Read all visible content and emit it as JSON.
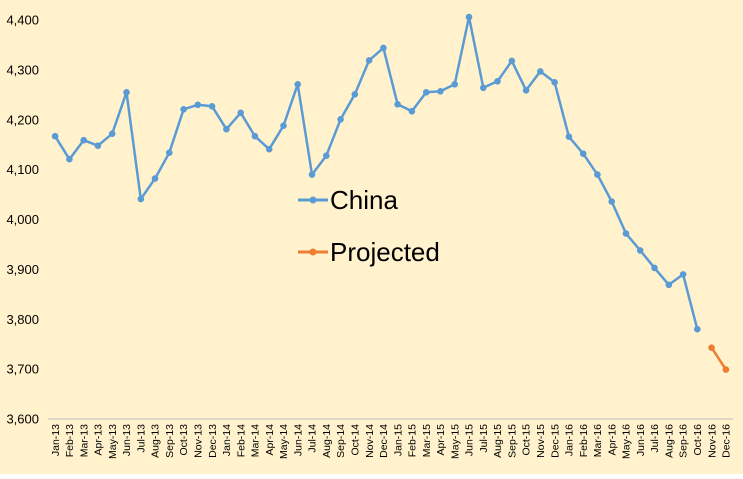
{
  "chart_data": {
    "type": "line",
    "title": "",
    "xlabel": "",
    "ylabel": "",
    "ylim": [
      3600,
      4400
    ],
    "yticks": [
      "3,600",
      "3,700",
      "3,800",
      "3,900",
      "4,000",
      "4,100",
      "4,200",
      "4,300",
      "4,400"
    ],
    "grid": false,
    "legend_position": "center",
    "background": "#FFF2CC",
    "categories": [
      "Jan-13",
      "Feb-13",
      "Mar-13",
      "Apr-13",
      "May-13",
      "Jun-13",
      "Jul-13",
      "Aug-13",
      "Sep-13",
      "Oct-13",
      "Nov-13",
      "Dec-13",
      "Jan-14",
      "Feb-14",
      "Mar-14",
      "Apr-14",
      "May-14",
      "Jun-14",
      "Jul-14",
      "Aug-14",
      "Sep-14",
      "Oct-14",
      "Nov-14",
      "Dec-14",
      "Jan-15",
      "Feb-15",
      "Mar-15",
      "Apr-15",
      "May-15",
      "Jun-15",
      "Jul-15",
      "Aug-15",
      "Sep-15",
      "Oct-15",
      "Nov-15",
      "Dec-15",
      "Jan-16",
      "Feb-16",
      "Mar-16",
      "Apr-16",
      "May-16",
      "Jun-16",
      "Jul-16",
      "Aug-16",
      "Sep-16",
      "Oct-16",
      "Nov-16",
      "Dec-16"
    ],
    "series": [
      {
        "name": "China",
        "color": "#5B9BD5",
        "values": [
          4167,
          4121,
          4159,
          4148,
          4172,
          4255,
          4041,
          4082,
          4134,
          4221,
          4230,
          4227,
          4181,
          4214,
          4167,
          4141,
          4188,
          4271,
          4090,
          4128,
          4201,
          4251,
          4319,
          4344,
          4231,
          4217,
          4255,
          4257,
          4271,
          4406,
          4264,
          4277,
          4318,
          4259,
          4297,
          4275,
          4166,
          4132,
          4090,
          4036,
          3972,
          3938,
          3903,
          3869,
          3890,
          3780,
          null,
          null
        ]
      },
      {
        "name": "Projected",
        "color": "#ED7D31",
        "values": [
          null,
          null,
          null,
          null,
          null,
          null,
          null,
          null,
          null,
          null,
          null,
          null,
          null,
          null,
          null,
          null,
          null,
          null,
          null,
          null,
          null,
          null,
          null,
          null,
          null,
          null,
          null,
          null,
          null,
          null,
          null,
          null,
          null,
          null,
          null,
          null,
          null,
          null,
          null,
          null,
          null,
          null,
          null,
          null,
          null,
          null,
          3743,
          3699
        ]
      }
    ]
  }
}
